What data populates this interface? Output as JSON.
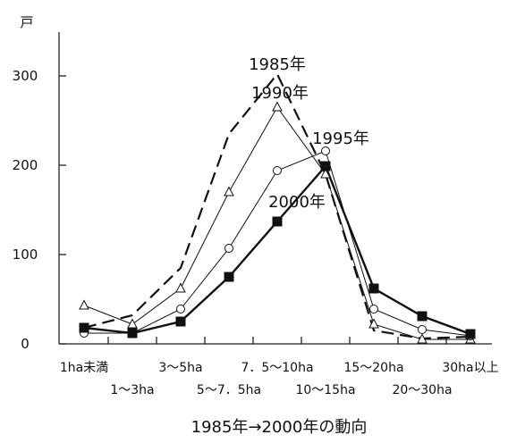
{
  "chart_data": {
    "type": "line",
    "title": "",
    "caption": "1985年→2000年の動向",
    "ylabel": "戸",
    "xlabel": "",
    "ylim": [
      0,
      340
    ],
    "yticks": [
      0,
      100,
      200,
      300
    ],
    "grid": false,
    "categories": [
      "1ha未満",
      "1〜3ha",
      "3〜5ha",
      "5〜7.5ha",
      "7.5〜10ha",
      "10〜15ha",
      "15〜20ha",
      "20〜30ha",
      "30ha以上"
    ],
    "category_labels_row1": [
      "1ha未満",
      "",
      "3〜5ha",
      "",
      "7．5〜10ha",
      "",
      "15〜20ha",
      "",
      "30ha以上"
    ],
    "category_labels_row2": [
      "",
      "1〜3ha",
      "",
      "5〜7．5ha",
      "",
      "10〜15ha",
      "",
      "20〜30ha",
      ""
    ],
    "series": [
      {
        "name": "1985年",
        "style": "dashed",
        "marker": "none",
        "values": [
          18,
          32,
          85,
          235,
          302,
          190,
          15,
          6,
          8
        ]
      },
      {
        "name": "1990年",
        "style": "thin",
        "marker": "triangle",
        "values": [
          43,
          22,
          62,
          170,
          265,
          190,
          22,
          5,
          5
        ]
      },
      {
        "name": "1995年",
        "style": "thin",
        "marker": "circle",
        "values": [
          12,
          12,
          39,
          107,
          194,
          216,
          39,
          16,
          9
        ]
      },
      {
        "name": "2000年",
        "style": "thick",
        "marker": "square",
        "values": [
          18,
          12,
          25,
          75,
          137,
          199,
          62,
          31,
          11
        ]
      }
    ]
  }
}
